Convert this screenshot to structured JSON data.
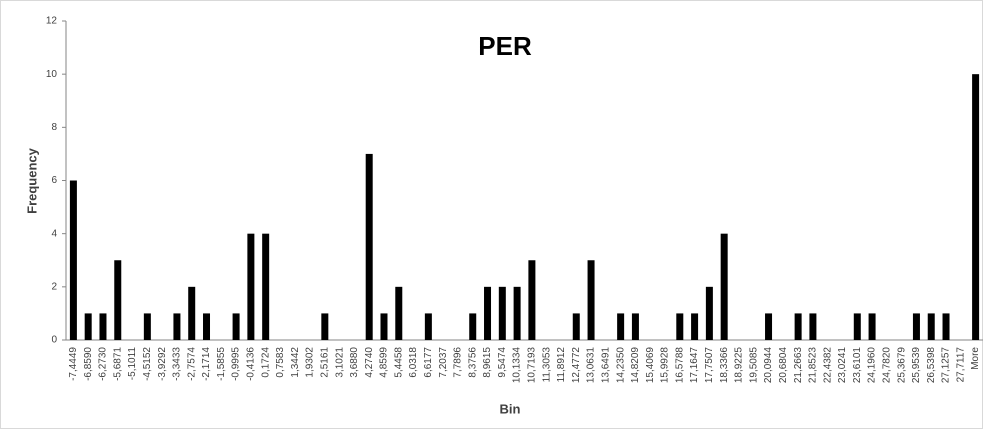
{
  "chart_data": {
    "type": "bar",
    "title": "PER",
    "x_label": "Bin",
    "y_label": "Frequency",
    "categories": [
      "-7,4449",
      "-6,8590",
      "-6,2730",
      "-5,6871",
      "-5,1011",
      "-4,5152",
      "-3,9292",
      "-3,3433",
      "-2,7574",
      "-2,1714",
      "-1,5855",
      "-0,9995",
      "-0,4136",
      "0,1724",
      "0,7583",
      "1,3442",
      "1,9302",
      "2,5161",
      "3,1021",
      "3,6880",
      "4,2740",
      "4,8599",
      "5,4458",
      "6,0318",
      "6,6177",
      "7,2037",
      "7,7896",
      "8,3756",
      "8,9615",
      "9,5474",
      "10,1334",
      "10,7193",
      "11,3053",
      "11,8912",
      "12,4772",
      "13,0631",
      "13,6491",
      "14,2350",
      "14,8209",
      "15,4069",
      "15,9928",
      "16,5788",
      "17,1647",
      "17,7507",
      "18,3366",
      "18,9225",
      "19,5085",
      "20,0944",
      "20,6804",
      "21,2663",
      "21,8523",
      "22,4382",
      "23,0241",
      "23,6101",
      "24,1960",
      "24,7820",
      "25,3679",
      "25,9539",
      "26,5398",
      "27,1257",
      "27,7117",
      "More"
    ],
    "values": [
      6,
      1,
      1,
      3,
      0,
      1,
      0,
      1,
      2,
      1,
      0,
      1,
      4,
      4,
      0,
      0,
      0,
      1,
      0,
      0,
      7,
      1,
      2,
      0,
      1,
      0,
      0,
      1,
      2,
      2,
      2,
      3,
      0,
      0,
      1,
      3,
      0,
      1,
      1,
      0,
      0,
      1,
      1,
      2,
      4,
      0,
      0,
      1,
      0,
      1,
      1,
      0,
      0,
      1,
      1,
      0,
      0,
      1,
      1,
      1,
      0,
      10
    ],
    "color": "#000000",
    "ylim": [
      0,
      12
    ],
    "yticks": [
      0,
      2,
      4,
      6,
      8,
      10,
      12
    ],
    "grid": false
  }
}
